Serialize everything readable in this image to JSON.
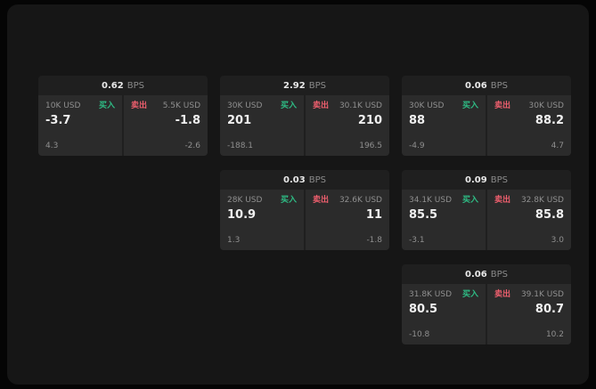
{
  "colors": {
    "buy_green": "#2ebd85",
    "sell_red": "#ef5f6e",
    "panel_bg": "#2b2b2b",
    "card_bg": "#1f1f1f",
    "app_bg": "#161616"
  },
  "cards": [
    {
      "spread": "0.62",
      "unit": "BPS",
      "buy": {
        "size": "10K USD",
        "label": "买入",
        "value": "-3.7",
        "delta": "4.3"
      },
      "sell": {
        "size": "5.5K USD",
        "label": "卖出",
        "value": "-1.8",
        "delta": "-2.6"
      }
    },
    {
      "spread": "2.92",
      "unit": "BPS",
      "buy": {
        "size": "30K USD",
        "label": "买入",
        "value": "201",
        "delta": "-188.1"
      },
      "sell": {
        "size": "30.1K USD",
        "label": "卖出",
        "value": "210",
        "delta": "196.5"
      }
    },
    {
      "spread": "0.06",
      "unit": "BPS",
      "buy": {
        "size": "30K USD",
        "label": "买入",
        "value": "88",
        "delta": "-4.9"
      },
      "sell": {
        "size": "30K USD",
        "label": "卖出",
        "value": "88.2",
        "delta": "4.7"
      }
    },
    {
      "spread": "0.03",
      "unit": "BPS",
      "buy": {
        "size": "28K USD",
        "label": "买入",
        "value": "10.9",
        "delta": "1.3"
      },
      "sell": {
        "size": "32.6K USD",
        "label": "卖出",
        "value": "11",
        "delta": "-1.8"
      }
    },
    {
      "spread": "0.09",
      "unit": "BPS",
      "buy": {
        "size": "34.1K USD",
        "label": "买入",
        "value": "85.5",
        "delta": "-3.1"
      },
      "sell": {
        "size": "32.8K USD",
        "label": "卖出",
        "value": "85.8",
        "delta": "3.0"
      }
    },
    {
      "spread": "0.06",
      "unit": "BPS",
      "buy": {
        "size": "31.8K USD",
        "label": "买入",
        "value": "80.5",
        "delta": "-10.8"
      },
      "sell": {
        "size": "39.1K USD",
        "label": "卖出",
        "value": "80.7",
        "delta": "10.2"
      }
    }
  ]
}
